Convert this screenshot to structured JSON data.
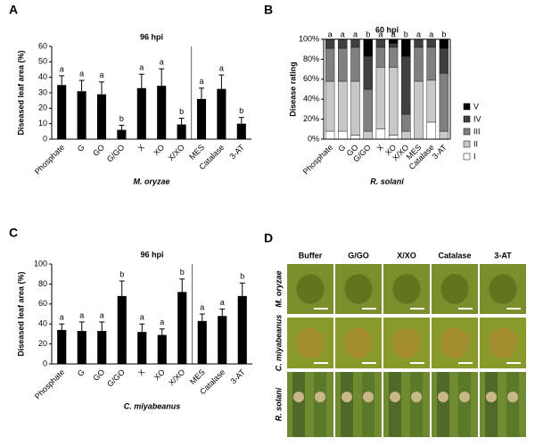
{
  "chart_data": [
    {
      "type": "bar",
      "panel": "A",
      "title": "96 hpi",
      "ylabel": "Diseased leaf area (%)",
      "xlabel": "M. oryzae",
      "categories": [
        "Phosphate",
        "G",
        "GO",
        "G/GO",
        "X",
        "XO",
        "X/XO",
        "MES",
        "Catalase",
        "3-AT"
      ],
      "values": [
        35,
        31,
        29,
        6,
        33,
        34.5,
        9.5,
        26,
        32.5,
        10
      ],
      "errors": [
        6,
        7,
        8,
        3,
        9,
        11,
        4,
        7,
        9,
        4
      ],
      "letters": [
        "a",
        "a",
        "a",
        "b",
        "a",
        "a",
        "b",
        "a",
        "a",
        "b"
      ],
      "color": "#000000",
      "ylim": [
        0,
        60
      ],
      "yticks": [
        0,
        10,
        20,
        30,
        40,
        50,
        60
      ]
    },
    {
      "type": "stacked_bar",
      "panel": "B",
      "title": "60 hpi",
      "ylabel": "Disease rating",
      "xlabel": "R. solani",
      "categories": [
        "Phosphate",
        "G",
        "GO",
        "G/GO",
        "X",
        "XO",
        "X/XO",
        "MES",
        "Catalase",
        "3-AT"
      ],
      "series": [
        {
          "name": "I",
          "color": "#ffffff",
          "values": [
            8,
            8,
            4,
            0,
            10,
            4,
            0,
            0,
            17,
            0
          ]
        },
        {
          "name": "II",
          "color": "#c8c8c8",
          "values": [
            50,
            50,
            54,
            8,
            62,
            68,
            8,
            58,
            42,
            8
          ]
        },
        {
          "name": "III",
          "color": "#808080",
          "values": [
            33,
            33,
            34,
            42,
            20,
            20,
            17,
            34,
            33,
            58
          ]
        },
        {
          "name": "IV",
          "color": "#404040",
          "values": [
            9,
            9,
            8,
            33,
            8,
            4,
            58,
            8,
            8,
            25
          ]
        },
        {
          "name": "V",
          "color": "#000000",
          "values": [
            0,
            0,
            0,
            17,
            0,
            4,
            17,
            0,
            0,
            9
          ]
        }
      ],
      "letters": [
        "a",
        "a",
        "a",
        "b",
        "a",
        "a",
        "b",
        "a",
        "a",
        "b"
      ],
      "ylim": [
        0,
        100
      ],
      "yticks": [
        {
          "value": 0,
          "label": "0%"
        },
        {
          "value": 20,
          "label": "20%"
        },
        {
          "value": 40,
          "label": "40%"
        },
        {
          "value": 60,
          "label": "60%"
        },
        {
          "value": 80,
          "label": "80%"
        },
        {
          "value": 100,
          "label": "100%"
        }
      ]
    },
    {
      "type": "bar",
      "panel": "C",
      "title": "96 hpi",
      "ylabel": "Diseased leaf area (%)",
      "xlabel": "C. miyabeanus",
      "categories": [
        "Phosphate",
        "G",
        "GO",
        "G/GO",
        "X",
        "XO",
        "X/XO",
        "MES",
        "Catalase",
        "3-AT"
      ],
      "values": [
        34,
        33,
        33,
        68,
        32,
        29,
        72,
        43,
        48,
        68
      ],
      "errors": [
        6,
        9,
        9,
        15,
        8,
        6,
        13,
        7,
        7,
        13
      ],
      "letters": [
        "a",
        "a",
        "a",
        "b",
        "a",
        "a",
        "b",
        "a",
        "a",
        "b"
      ],
      "color": "#000000",
      "ylim": [
        0,
        100
      ],
      "yticks": [
        0,
        20,
        40,
        60,
        80,
        100
      ]
    }
  ],
  "photo_panel": {
    "panel": "D",
    "columns": [
      "Buffer",
      "G/GO",
      "X/XO",
      "Catalase",
      "3-AT"
    ],
    "rows": [
      "M. oryzae",
      "C. miyabeanus",
      "R. solani"
    ]
  }
}
